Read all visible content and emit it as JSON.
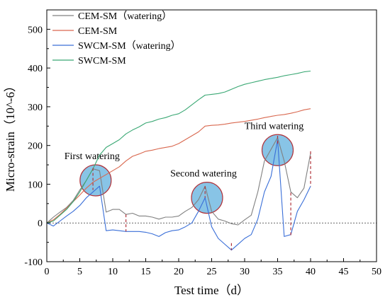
{
  "chart_data": {
    "type": "line",
    "xlabel": "Test time（d）",
    "ylabel": "Micro-strain（10^-6）",
    "xlim": [
      0,
      50
    ],
    "ylim": [
      -100,
      550
    ],
    "xticks": [
      0,
      5,
      10,
      15,
      20,
      25,
      30,
      35,
      40,
      45,
      50
    ],
    "yticks": [
      -100,
      0,
      100,
      200,
      300,
      400,
      500
    ],
    "xtick_labels": [
      "0",
      "5",
      "10",
      "15",
      "20",
      "25",
      "30",
      "35",
      "40",
      "45",
      "50"
    ],
    "ytick_labels": [
      "-100",
      "0",
      "100",
      "200",
      "300",
      "400",
      "500"
    ],
    "grid": false,
    "reference_line": {
      "y": 0,
      "style": "dotted"
    },
    "legend": {
      "placement": "top-left"
    },
    "series": [
      {
        "name": "CEM-SM（watering）",
        "color": "#808080",
        "x": [
          0,
          1,
          2,
          3,
          4,
          5,
          6,
          7,
          8,
          9,
          10,
          11,
          12,
          13,
          14,
          15,
          16,
          17,
          18,
          19,
          20,
          21,
          22,
          23,
          24,
          25,
          26,
          27,
          28,
          29,
          30,
          31,
          32,
          33,
          34,
          35,
          36,
          37,
          38,
          39,
          40
        ],
        "values": [
          0,
          15,
          28,
          40,
          58,
          85,
          110,
          140,
          135,
          28,
          35,
          35,
          22,
          25,
          18,
          18,
          15,
          10,
          15,
          15,
          18,
          30,
          40,
          60,
          95,
          30,
          10,
          5,
          -2,
          -5,
          8,
          20,
          80,
          160,
          190,
          220,
          160,
          80,
          65,
          90,
          180
        ]
      },
      {
        "name": "CEM-SM",
        "color": "#d9684f",
        "x": [
          0,
          1,
          2,
          3,
          4,
          5,
          6,
          7,
          8,
          9,
          10,
          11,
          12,
          13,
          14,
          15,
          16,
          17,
          18,
          19,
          20,
          21,
          22,
          23,
          24,
          25,
          26,
          27,
          28,
          29,
          30,
          31,
          32,
          33,
          34,
          35,
          36,
          37,
          38,
          39,
          40
        ],
        "values": [
          0,
          8,
          22,
          38,
          55,
          72,
          90,
          105,
          115,
          125,
          135,
          145,
          160,
          172,
          178,
          185,
          188,
          192,
          195,
          198,
          205,
          215,
          225,
          235,
          250,
          252,
          253,
          255,
          258,
          260,
          262,
          265,
          268,
          272,
          275,
          278,
          280,
          283,
          287,
          292,
          295
        ]
      },
      {
        "name": "SWCM-SM（watering）",
        "color": "#3a6fd8",
        "x": [
          0,
          1,
          2,
          3,
          4,
          5,
          6,
          7,
          8,
          9,
          10,
          11,
          12,
          13,
          14,
          15,
          16,
          17,
          18,
          19,
          20,
          21,
          22,
          23,
          24,
          25,
          26,
          27,
          28,
          29,
          30,
          31,
          32,
          33,
          34,
          35,
          36,
          37,
          38,
          39,
          40
        ],
        "values": [
          0,
          -8,
          5,
          18,
          30,
          45,
          65,
          80,
          95,
          -20,
          -18,
          -20,
          -22,
          -22,
          -22,
          -24,
          -28,
          -35,
          -25,
          -20,
          -18,
          -10,
          0,
          30,
          65,
          -10,
          -40,
          -55,
          -70,
          -55,
          -40,
          -30,
          10,
          80,
          120,
          215,
          -35,
          -30,
          30,
          60,
          95
        ]
      },
      {
        "name": "SWCM-SM",
        "color": "#3aa874",
        "x": [
          0,
          1,
          2,
          3,
          4,
          5,
          6,
          7,
          8,
          9,
          10,
          11,
          12,
          13,
          14,
          15,
          16,
          17,
          18,
          19,
          20,
          21,
          22,
          23,
          24,
          25,
          26,
          27,
          28,
          29,
          30,
          31,
          32,
          33,
          34,
          35,
          36,
          37,
          38,
          39,
          40
        ],
        "values": [
          0,
          5,
          20,
          35,
          55,
          80,
          110,
          140,
          175,
          195,
          205,
          215,
          230,
          240,
          248,
          258,
          262,
          268,
          272,
          278,
          282,
          292,
          305,
          318,
          330,
          332,
          334,
          338,
          345,
          352,
          358,
          362,
          366,
          370,
          373,
          376,
          380,
          383,
          386,
          390,
          392
        ]
      }
    ],
    "drops": [
      {
        "x": 7,
        "y_top": 142,
        "y_bottom": 85
      },
      {
        "x": 12,
        "y_top": 22,
        "y_bottom": -22
      },
      {
        "x": 24,
        "y_top": 95,
        "y_bottom": 65
      },
      {
        "x": 28,
        "y_top": -52,
        "y_bottom": -70
      },
      {
        "x": 35,
        "y_top": 225,
        "y_bottom": 205
      },
      {
        "x": 37,
        "y_top": 78,
        "y_bottom": -35
      },
      {
        "x": 40,
        "y_top": 185,
        "y_bottom": 95
      }
    ],
    "highlights": [
      {
        "label": "First watering",
        "cx": 7.4,
        "cy": 110,
        "label_pos": "above"
      },
      {
        "label": "Second watering",
        "cx": 24.3,
        "cy": 65,
        "label_pos": "above"
      },
      {
        "label": "Third watering",
        "cx": 35,
        "cy": 188,
        "label_pos": "above"
      }
    ],
    "highlight_style": {
      "fill": "#88c4e6",
      "stroke": "#b0323a"
    },
    "drop_color": "#b0323a",
    "axis_color": "#000000"
  }
}
